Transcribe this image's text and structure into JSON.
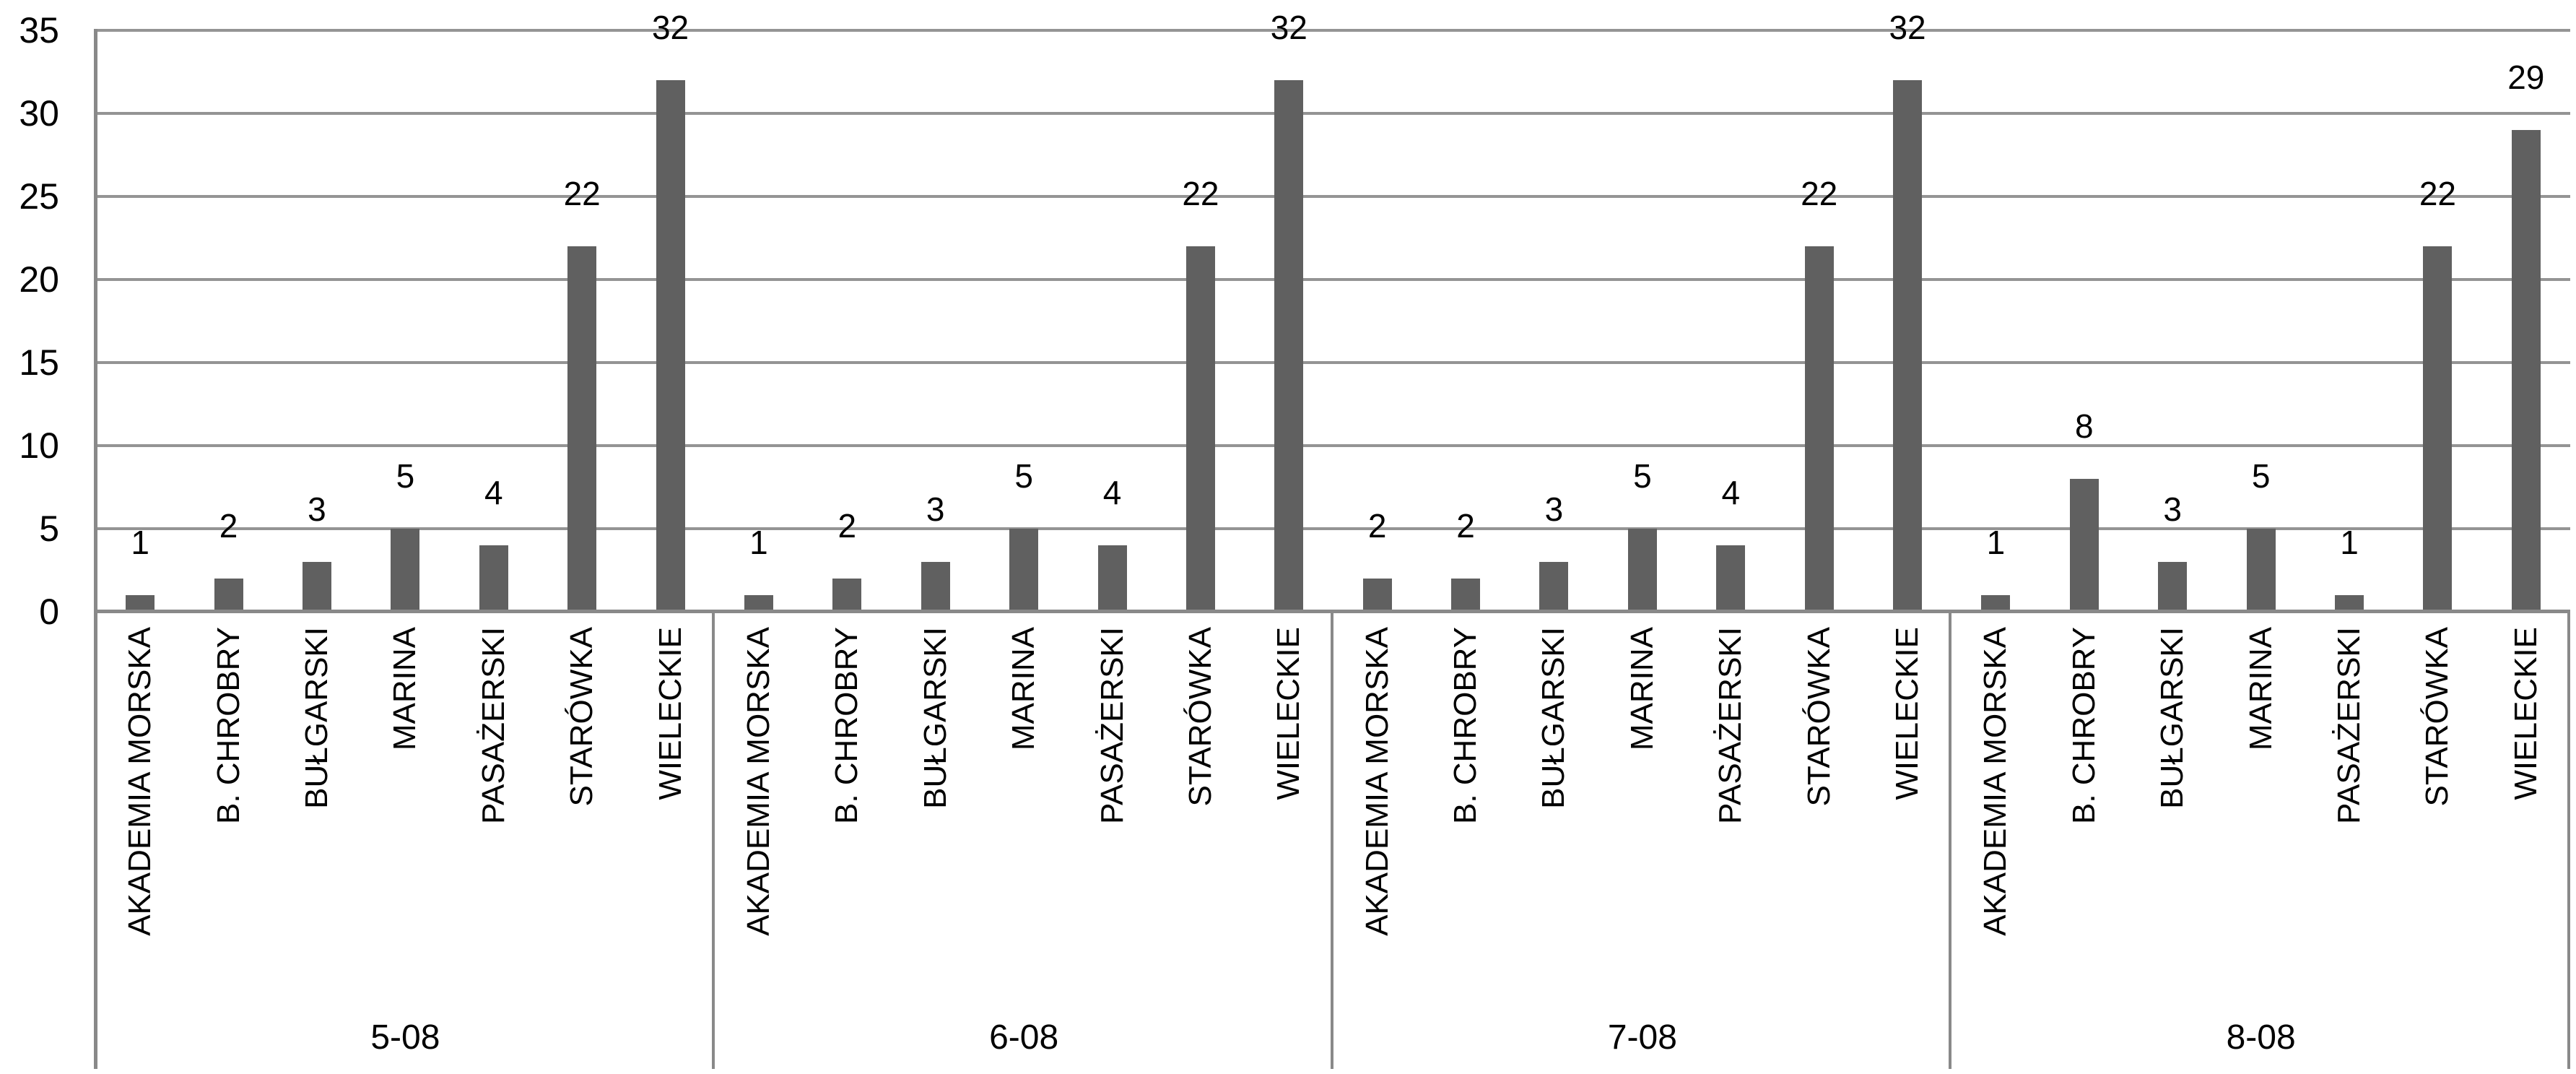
{
  "chart_data": {
    "type": "bar",
    "title": "",
    "xlabel": "",
    "ylabel": "",
    "categories": [
      "AKADEMIA MORSKA",
      "B. CHROBRY",
      "BUŁGARSKI",
      "MARINA",
      "PASAŻERSKI",
      "STARÓWKA",
      "WIELECKIE"
    ],
    "groups": [
      {
        "label": "5-08",
        "values": [
          1,
          2,
          3,
          5,
          4,
          22,
          32
        ]
      },
      {
        "label": "6-08",
        "values": [
          1,
          2,
          3,
          5,
          4,
          22,
          32
        ]
      },
      {
        "label": "7-08",
        "values": [
          2,
          2,
          3,
          5,
          4,
          22,
          32
        ]
      },
      {
        "label": "8-08",
        "values": [
          1,
          8,
          3,
          5,
          1,
          22,
          29
        ]
      }
    ],
    "yticks": [
      0,
      5,
      10,
      15,
      20,
      25,
      30,
      35
    ],
    "ylim": [
      0,
      35
    ],
    "grid": true,
    "legend": false,
    "bar_value_labels_shown": true,
    "colors": {
      "bar": "#606060",
      "gridline": "#949494",
      "axis": "#898989",
      "text": "#000000",
      "background": "#ffffff"
    }
  }
}
